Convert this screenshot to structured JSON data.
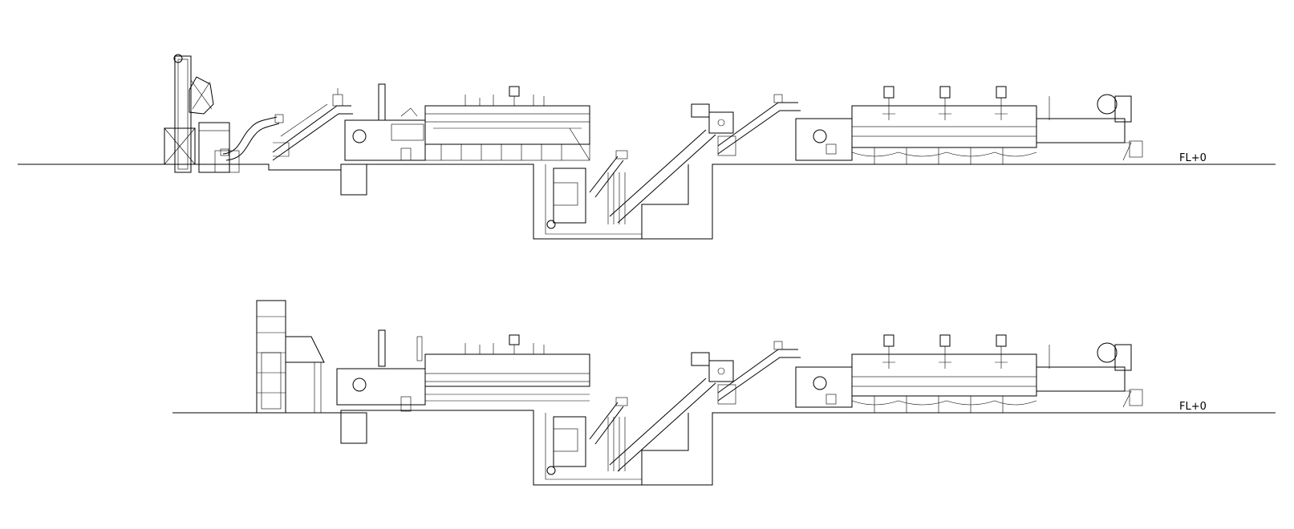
{
  "drawing": {
    "elevations": [
      {
        "level_label": "FL+0"
      },
      {
        "level_label": "FL+0"
      }
    ]
  }
}
